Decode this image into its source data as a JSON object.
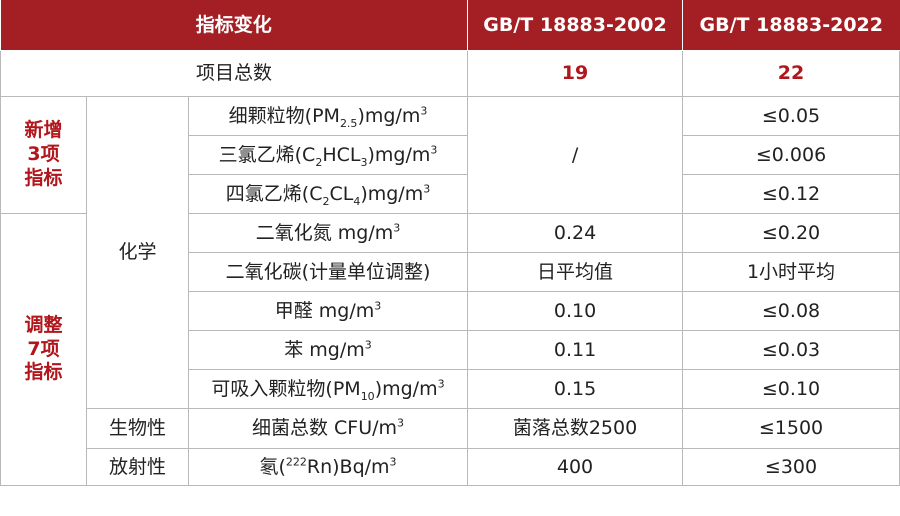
{
  "header": {
    "col1": "指标变化",
    "col2": "GB/T 18883-2002",
    "col3": "GB/T 18883-2022"
  },
  "count_row": {
    "label": "项目总数",
    "v2002": "19",
    "v2022": "22"
  },
  "group_new": {
    "line1": "新增",
    "line2": "3项",
    "line3": "指标"
  },
  "group_adj": {
    "line1": "调整",
    "line2": "7项",
    "line3": "指标"
  },
  "categories": {
    "chemical": "化学",
    "biological": "生物性",
    "radioactive": "放射性"
  },
  "rows": [
    {
      "name_pre": "细颗粒物(PM",
      "name_sub": "2.5",
      "name_post": ")mg/m",
      "name_sup": "3",
      "v2002": "/",
      "v2022": "≤0.05"
    },
    {
      "name_pre": "三氯乙烯(C",
      "name_sub": "2",
      "name_mid": "HCL",
      "name_sub2": "3",
      "name_post": ")mg/m",
      "name_sup": "3",
      "v2022": "≤0.006"
    },
    {
      "name_pre": "四氯乙烯(C",
      "name_sub": "2",
      "name_mid": "CL",
      "name_sub2": "4",
      "name_post": ")mg/m",
      "name_sup": "3",
      "v2022": "≤0.12"
    },
    {
      "name_pre": "二氧化氮 mg/m",
      "name_sup": "3",
      "v2002": "0.24",
      "v2022": "≤0.20"
    },
    {
      "name_pre": "二氧化碳(计量单位调整)",
      "v2002": "日平均值",
      "v2022": "1小时平均"
    },
    {
      "name_pre": "甲醛 mg/m",
      "name_sup": "3",
      "v2002": "0.10",
      "v2022": "≤0.08"
    },
    {
      "name_pre": "苯 mg/m",
      "name_sup": "3",
      "v2002": "0.11",
      "v2022": "≤0.03"
    },
    {
      "name_pre": "可吸入颗粒物(PM",
      "name_sub": "10",
      "name_post": ")mg/m",
      "name_sup": "3",
      "v2002": "0.15",
      "v2022": "≤0.10"
    },
    {
      "name_pre": "细菌总数 CFU/m",
      "name_sup": "3",
      "v2002": "菌落总数2500",
      "v2022": "≤1500"
    },
    {
      "name_pre": "氡(",
      "name_sup0": "222",
      "name_post": "Rn)Bq/m",
      "name_sup": "3",
      "v2002": "400",
      "v2022": "≤300"
    }
  ]
}
